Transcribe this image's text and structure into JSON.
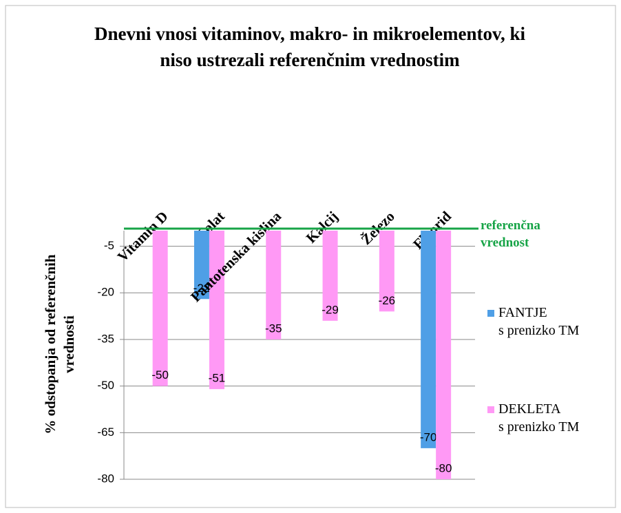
{
  "chart_data": {
    "type": "bar",
    "title": "Dnevni vnosi vitaminov, makro- in mikroelementov, ki\nniso ustrezali referenčnim vrednostim",
    "y_label": "% odstopanja od referenčnih\nvrednosti",
    "categories": [
      "Vitamin D",
      "Folat",
      "Pantotenska kislina",
      "Kalcij",
      "Železo",
      "Fluorid"
    ],
    "series": [
      {
        "name": "FANTJE\ns prenizko TM",
        "color": "#4f9fe6",
        "values": [
          null,
          -22,
          null,
          null,
          null,
          -70
        ]
      },
      {
        "name": "DEKLETA\ns prenizko TM",
        "color": "#ff99f5",
        "values": [
          -50,
          -51,
          -35,
          -29,
          -26,
          -80
        ]
      }
    ],
    "ylim": [
      -80,
      0
    ],
    "yticks": [
      -5,
      -20,
      -35,
      -50,
      -65,
      -80
    ],
    "grid": true,
    "reference_line": {
      "value": 0,
      "label": "referenčna\nvrednost",
      "color": "#17a447"
    },
    "legend": "right"
  }
}
